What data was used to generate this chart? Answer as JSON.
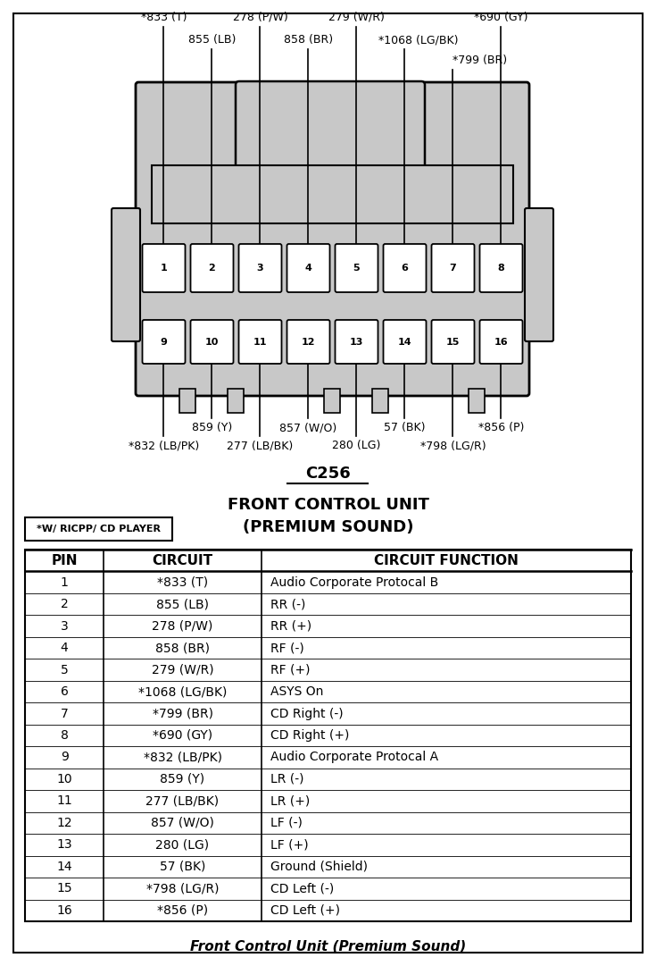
{
  "title_connector": "C256",
  "caption": "Front Control Unit (Premium Sound)",
  "label_ricpp": "*W/ RICPP/ CD PLAYER",
  "table_data": [
    [
      "1",
      "*833 (T)",
      "Audio Corporate Protocal B"
    ],
    [
      "2",
      "855 (LB)",
      "RR (-)"
    ],
    [
      "3",
      "278 (P/W)",
      "RR (+)"
    ],
    [
      "4",
      "858 (BR)",
      "RF (-)"
    ],
    [
      "5",
      "279 (W/R)",
      "RF (+)"
    ],
    [
      "6",
      "*1068 (LG/BK)",
      "ASYS On"
    ],
    [
      "7",
      "*799 (BR)",
      "CD Right (-)"
    ],
    [
      "8",
      "*690 (GY)",
      "CD Right (+)"
    ],
    [
      "9",
      "*832 (LB/PK)",
      "Audio Corporate Protocal A"
    ],
    [
      "10",
      "859 (Y)",
      "LR (-)"
    ],
    [
      "11",
      "277 (LB/BK)",
      "LR (+)"
    ],
    [
      "12",
      "857 (W/O)",
      "LF (-)"
    ],
    [
      "13",
      "280 (LG)",
      "LF (+)"
    ],
    [
      "14",
      "57 (BK)",
      "Ground (Shield)"
    ],
    [
      "15",
      "*798 (LG/R)",
      "CD Left (-)"
    ],
    [
      "16",
      "*856 (P)",
      "CD Left (+)"
    ]
  ],
  "bg_color": "#ffffff",
  "connector_fill": "#c8c8c8",
  "top_wire_labels_row1": [
    "*833 (T)",
    "278 (P/W)",
    "279 (W/R)",
    "*690 (GY)"
  ],
  "top_wire_labels_row2": [
    "855 (LB)",
    "858 (BR)",
    "*1068 (LG/BK)"
  ],
  "top_wire_labels_row3": [
    "*799 (BR)"
  ],
  "bot_wire_labels_row1": [
    "859 (Y)",
    "857 (W/O)",
    "57 (BK)",
    "*856 (P)"
  ],
  "bot_wire_labels_row2": [
    "*832 (LB/PK)",
    "277 (LB/BK)",
    "280 (LG)",
    "*798 (LG/R)"
  ]
}
